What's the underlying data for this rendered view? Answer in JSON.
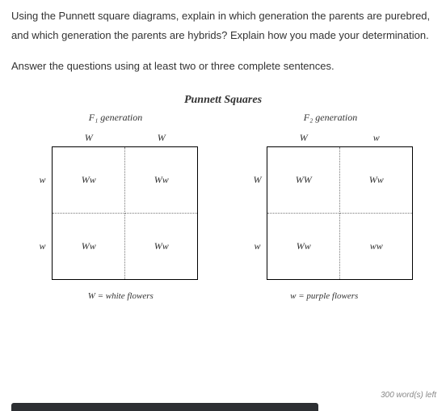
{
  "question": "Using the Punnett square diagrams, explain in which generation the parents are purebred, and which generation the parents are hybrids? Explain how you made your determination.",
  "instruction": "Answer the questions using at least two or three complete sentences.",
  "figure_title": "Punnett Squares",
  "f1": {
    "label": "F₁ generation",
    "top": [
      "W",
      "W"
    ],
    "left": [
      "w",
      "w"
    ],
    "cells": [
      [
        "Ww",
        "Ww"
      ],
      [
        "Ww",
        "Ww"
      ]
    ]
  },
  "f2": {
    "label": "F₂ generation",
    "top": [
      "W",
      "w"
    ],
    "left": [
      "W",
      "w"
    ],
    "cells": [
      [
        "WW",
        "Ww"
      ],
      [
        "Ww",
        "ww"
      ]
    ]
  },
  "legend": {
    "white": "W = white flowers",
    "purple": "w = purple flowers"
  },
  "word_count": "300 word(s) left",
  "colors": {
    "text": "#333333",
    "border_solid": "#000000",
    "border_dotted": "#777777",
    "hint": "#888888",
    "bar": "#2d2f33",
    "bg": "#ffffff"
  }
}
